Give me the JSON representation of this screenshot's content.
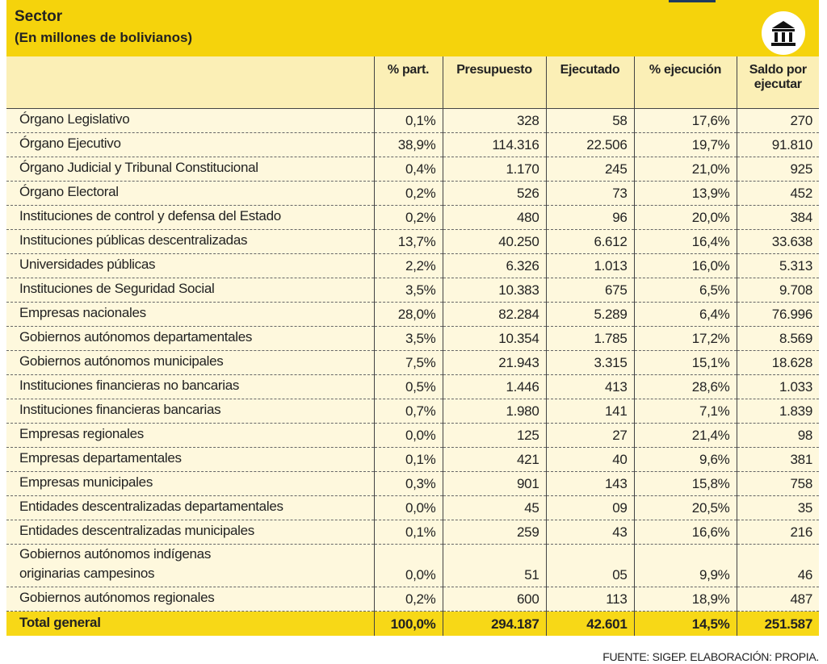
{
  "header": {
    "title": "Sector",
    "subtitle": "(En millones de bolivianos)"
  },
  "table": {
    "columns": [
      "% part.",
      "Presupuesto",
      "Ejecutado",
      "% ejecución",
      "Saldo por ejecutar"
    ],
    "rows": [
      [
        "Órgano Legislativo",
        "0,1%",
        "328",
        "58",
        "17,6%",
        "270"
      ],
      [
        "Órgano Ejecutivo",
        "38,9%",
        "114.316",
        "22.506",
        "19,7%",
        "91.810"
      ],
      [
        "Órgano Judicial y Tribunal Constitucional",
        "0,4%",
        "1.170",
        "245",
        "21,0%",
        "925"
      ],
      [
        "Órgano Electoral",
        "0,2%",
        "526",
        "73",
        "13,9%",
        "452"
      ],
      [
        "Instituciones de control y defensa del Estado",
        "0,2%",
        "480",
        "96",
        "20,0%",
        "384"
      ],
      [
        "Instituciones públicas descentralizadas",
        "13,7%",
        "40.250",
        "6.612",
        "16,4%",
        "33.638"
      ],
      [
        "Universidades públicas",
        "2,2%",
        "6.326",
        "1.013",
        "16,0%",
        "5.313"
      ],
      [
        "Instituciones de Seguridad Social",
        "3,5%",
        "10.383",
        "675",
        "6,5%",
        "9.708"
      ],
      [
        "Empresas nacionales",
        "28,0%",
        "82.284",
        "5.289",
        "6,4%",
        "76.996"
      ],
      [
        "Gobiernos autónomos departamentales",
        "3,5%",
        "10.354",
        "1.785",
        "17,2%",
        "8.569"
      ],
      [
        "Gobiernos autónomos municipales",
        "7,5%",
        "21.943",
        "3.315",
        "15,1%",
        "18.628"
      ],
      [
        "Instituciones financieras no bancarias",
        "0,5%",
        "1.446",
        "413",
        "28,6%",
        "1.033"
      ],
      [
        "Instituciones financieras bancarias",
        "0,7%",
        "1.980",
        "141",
        "7,1%",
        "1.839"
      ],
      [
        "Empresas regionales",
        "0,0%",
        "125",
        "27",
        "21,4%",
        "98"
      ],
      [
        "Empresas departamentales",
        "0,1%",
        "421",
        "40",
        "9,6%",
        "381"
      ],
      [
        "Empresas municipales",
        "0,3%",
        "901",
        "143",
        "15,8%",
        "758"
      ],
      [
        "Entidades descentralizadas departamentales",
        "0,0%",
        "45",
        "09",
        "20,5%",
        "35"
      ],
      [
        "Entidades descentralizadas municipales",
        "0,1%",
        "259",
        "43",
        "16,6%",
        "216"
      ],
      [
        "Gobiernos autónomos indígenas\noriginarias campesinos",
        "0,0%",
        "51",
        "05",
        "9,9%",
        "46"
      ],
      [
        "Gobiernos autónomos regionales",
        "0,2%",
        "600",
        "113",
        "18,9%",
        "487"
      ]
    ],
    "total": [
      "Total general",
      "100,0%",
      "294.187",
      "42.601",
      "14,5%",
      "251.587"
    ]
  },
  "footer": "FUENTE: SIGEP. ELABORACIÓN: PROPIA."
}
